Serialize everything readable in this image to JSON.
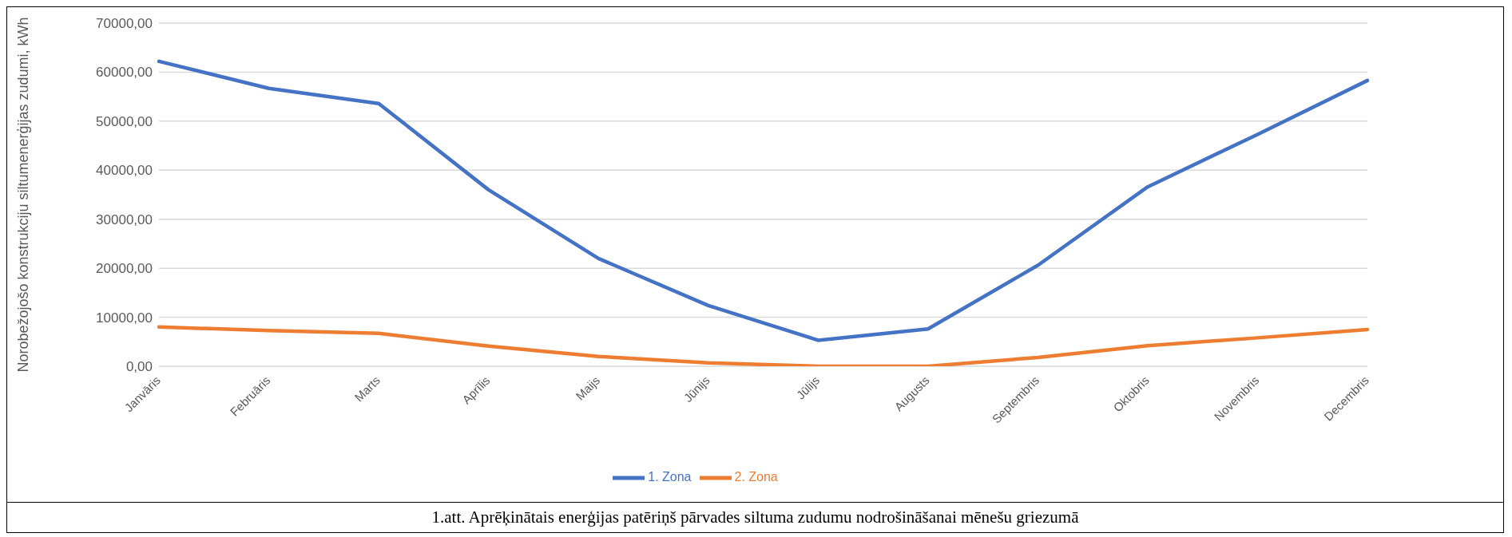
{
  "chart_data": {
    "type": "line",
    "ylabel": "Norobežojošo konstrukciju siltumenerģijas zudumi, kWh",
    "categories": [
      "Janvāris",
      "Februāris",
      "Marts",
      "Aprīlis",
      "Maijs",
      "Jūnijs",
      "Jūlijs",
      "Augusts",
      "Septembris",
      "Oktobris",
      "Novembris",
      "Decembris"
    ],
    "series": [
      {
        "name": "1. Zona",
        "color": "#4472c4",
        "values": [
          62200,
          56700,
          53600,
          36000,
          22000,
          12400,
          5300,
          7600,
          20600,
          36600,
          47300,
          58300
        ]
      },
      {
        "name": "2. Zona",
        "color": "#ed7d31",
        "values": [
          8000,
          7300,
          6700,
          4100,
          2000,
          700,
          0,
          0,
          1800,
          4200,
          5800,
          7500
        ]
      }
    ],
    "ylim": [
      0,
      70000
    ],
    "yticks": [
      {
        "value": 0,
        "label": "0,00"
      },
      {
        "value": 10000,
        "label": "10000,00"
      },
      {
        "value": 20000,
        "label": "20000,00"
      },
      {
        "value": 30000,
        "label": "30000,00"
      },
      {
        "value": 40000,
        "label": "40000,00"
      },
      {
        "value": 50000,
        "label": "50000,00"
      },
      {
        "value": 60000,
        "label": "60000,00"
      },
      {
        "value": 70000,
        "label": "70000,00"
      }
    ],
    "grid": "y",
    "legend": "bottom",
    "marker": "none",
    "line_style": "solid",
    "annotations": [
      "1.att. Aprēķinātais enerģijas patēriņš pārvades siltuma zudumu nodrošināšanai mēnešu griezumā"
    ]
  }
}
